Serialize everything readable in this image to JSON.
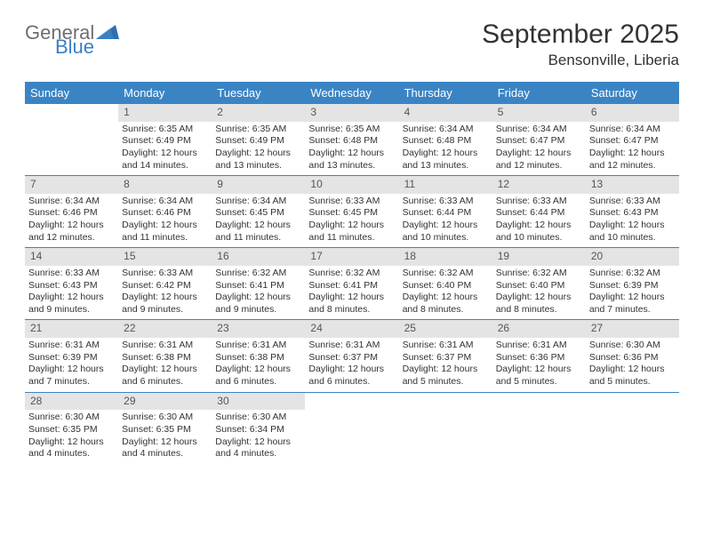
{
  "brand": {
    "word1": "General",
    "word2": "Blue",
    "color1": "#6d6e71",
    "color2": "#3b7fc4"
  },
  "title": "September 2025",
  "location": "Bensonville, Liberia",
  "dayNames": [
    "Sunday",
    "Monday",
    "Tuesday",
    "Wednesday",
    "Thursday",
    "Friday",
    "Saturday"
  ],
  "colors": {
    "header_bg": "#3b84c4",
    "header_text": "#ffffff",
    "num_bg": "#e4e4e4",
    "row_border": "#3b84c4"
  },
  "weeks": [
    [
      {
        "n": "",
        "sunrise": "",
        "sunset": "",
        "daylight": ""
      },
      {
        "n": "1",
        "sunrise": "Sunrise: 6:35 AM",
        "sunset": "Sunset: 6:49 PM",
        "daylight": "Daylight: 12 hours and 14 minutes."
      },
      {
        "n": "2",
        "sunrise": "Sunrise: 6:35 AM",
        "sunset": "Sunset: 6:49 PM",
        "daylight": "Daylight: 12 hours and 13 minutes."
      },
      {
        "n": "3",
        "sunrise": "Sunrise: 6:35 AM",
        "sunset": "Sunset: 6:48 PM",
        "daylight": "Daylight: 12 hours and 13 minutes."
      },
      {
        "n": "4",
        "sunrise": "Sunrise: 6:34 AM",
        "sunset": "Sunset: 6:48 PM",
        "daylight": "Daylight: 12 hours and 13 minutes."
      },
      {
        "n": "5",
        "sunrise": "Sunrise: 6:34 AM",
        "sunset": "Sunset: 6:47 PM",
        "daylight": "Daylight: 12 hours and 12 minutes."
      },
      {
        "n": "6",
        "sunrise": "Sunrise: 6:34 AM",
        "sunset": "Sunset: 6:47 PM",
        "daylight": "Daylight: 12 hours and 12 minutes."
      }
    ],
    [
      {
        "n": "7",
        "sunrise": "Sunrise: 6:34 AM",
        "sunset": "Sunset: 6:46 PM",
        "daylight": "Daylight: 12 hours and 12 minutes."
      },
      {
        "n": "8",
        "sunrise": "Sunrise: 6:34 AM",
        "sunset": "Sunset: 6:46 PM",
        "daylight": "Daylight: 12 hours and 11 minutes."
      },
      {
        "n": "9",
        "sunrise": "Sunrise: 6:34 AM",
        "sunset": "Sunset: 6:45 PM",
        "daylight": "Daylight: 12 hours and 11 minutes."
      },
      {
        "n": "10",
        "sunrise": "Sunrise: 6:33 AM",
        "sunset": "Sunset: 6:45 PM",
        "daylight": "Daylight: 12 hours and 11 minutes."
      },
      {
        "n": "11",
        "sunrise": "Sunrise: 6:33 AM",
        "sunset": "Sunset: 6:44 PM",
        "daylight": "Daylight: 12 hours and 10 minutes."
      },
      {
        "n": "12",
        "sunrise": "Sunrise: 6:33 AM",
        "sunset": "Sunset: 6:44 PM",
        "daylight": "Daylight: 12 hours and 10 minutes."
      },
      {
        "n": "13",
        "sunrise": "Sunrise: 6:33 AM",
        "sunset": "Sunset: 6:43 PM",
        "daylight": "Daylight: 12 hours and 10 minutes."
      }
    ],
    [
      {
        "n": "14",
        "sunrise": "Sunrise: 6:33 AM",
        "sunset": "Sunset: 6:43 PM",
        "daylight": "Daylight: 12 hours and 9 minutes."
      },
      {
        "n": "15",
        "sunrise": "Sunrise: 6:33 AM",
        "sunset": "Sunset: 6:42 PM",
        "daylight": "Daylight: 12 hours and 9 minutes."
      },
      {
        "n": "16",
        "sunrise": "Sunrise: 6:32 AM",
        "sunset": "Sunset: 6:41 PM",
        "daylight": "Daylight: 12 hours and 9 minutes."
      },
      {
        "n": "17",
        "sunrise": "Sunrise: 6:32 AM",
        "sunset": "Sunset: 6:41 PM",
        "daylight": "Daylight: 12 hours and 8 minutes."
      },
      {
        "n": "18",
        "sunrise": "Sunrise: 6:32 AM",
        "sunset": "Sunset: 6:40 PM",
        "daylight": "Daylight: 12 hours and 8 minutes."
      },
      {
        "n": "19",
        "sunrise": "Sunrise: 6:32 AM",
        "sunset": "Sunset: 6:40 PM",
        "daylight": "Daylight: 12 hours and 8 minutes."
      },
      {
        "n": "20",
        "sunrise": "Sunrise: 6:32 AM",
        "sunset": "Sunset: 6:39 PM",
        "daylight": "Daylight: 12 hours and 7 minutes."
      }
    ],
    [
      {
        "n": "21",
        "sunrise": "Sunrise: 6:31 AM",
        "sunset": "Sunset: 6:39 PM",
        "daylight": "Daylight: 12 hours and 7 minutes."
      },
      {
        "n": "22",
        "sunrise": "Sunrise: 6:31 AM",
        "sunset": "Sunset: 6:38 PM",
        "daylight": "Daylight: 12 hours and 6 minutes."
      },
      {
        "n": "23",
        "sunrise": "Sunrise: 6:31 AM",
        "sunset": "Sunset: 6:38 PM",
        "daylight": "Daylight: 12 hours and 6 minutes."
      },
      {
        "n": "24",
        "sunrise": "Sunrise: 6:31 AM",
        "sunset": "Sunset: 6:37 PM",
        "daylight": "Daylight: 12 hours and 6 minutes."
      },
      {
        "n": "25",
        "sunrise": "Sunrise: 6:31 AM",
        "sunset": "Sunset: 6:37 PM",
        "daylight": "Daylight: 12 hours and 5 minutes."
      },
      {
        "n": "26",
        "sunrise": "Sunrise: 6:31 AM",
        "sunset": "Sunset: 6:36 PM",
        "daylight": "Daylight: 12 hours and 5 minutes."
      },
      {
        "n": "27",
        "sunrise": "Sunrise: 6:30 AM",
        "sunset": "Sunset: 6:36 PM",
        "daylight": "Daylight: 12 hours and 5 minutes."
      }
    ],
    [
      {
        "n": "28",
        "sunrise": "Sunrise: 6:30 AM",
        "sunset": "Sunset: 6:35 PM",
        "daylight": "Daylight: 12 hours and 4 minutes."
      },
      {
        "n": "29",
        "sunrise": "Sunrise: 6:30 AM",
        "sunset": "Sunset: 6:35 PM",
        "daylight": "Daylight: 12 hours and 4 minutes."
      },
      {
        "n": "30",
        "sunrise": "Sunrise: 6:30 AM",
        "sunset": "Sunset: 6:34 PM",
        "daylight": "Daylight: 12 hours and 4 minutes."
      },
      {
        "n": "",
        "sunrise": "",
        "sunset": "",
        "daylight": ""
      },
      {
        "n": "",
        "sunrise": "",
        "sunset": "",
        "daylight": ""
      },
      {
        "n": "",
        "sunrise": "",
        "sunset": "",
        "daylight": ""
      },
      {
        "n": "",
        "sunrise": "",
        "sunset": "",
        "daylight": ""
      }
    ]
  ]
}
